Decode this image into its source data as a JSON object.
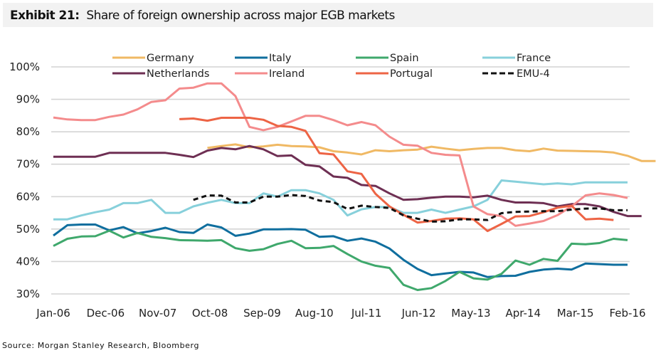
{
  "title": {
    "label": "Exhibit 21:",
    "text": "Share of foreign ownership across major EGB markets"
  },
  "source": "Source: Morgan Stanley Research, Bloomberg",
  "chart_data": {
    "type": "line",
    "title": "Share of foreign ownership across major EGB markets",
    "xlabel": "",
    "ylabel": "",
    "ylim": [
      30,
      100
    ],
    "yticks": [
      "30%",
      "40%",
      "50%",
      "60%",
      "70%",
      "80%",
      "90%",
      "100%"
    ],
    "ytick_values": [
      30,
      40,
      50,
      60,
      70,
      80,
      90,
      100
    ],
    "xtick_labels": [
      "Jan-06",
      "Dec-06",
      "Nov-07",
      "Oct-08",
      "Sep-09",
      "Aug-10",
      "Jul-11",
      "Jun-12",
      "May-13",
      "Apr-14",
      "Mar-15",
      "Feb-16"
    ],
    "xtick_index": [
      0,
      4,
      8,
      12,
      16,
      20,
      24,
      28,
      32,
      36,
      40,
      44
    ],
    "n_points": 45,
    "grid": true,
    "legend": "top",
    "series": [
      {
        "name": "Germany",
        "color": "#f0b964",
        "dash": false,
        "values": [
          null,
          null,
          null,
          null,
          null,
          null,
          null,
          null,
          null,
          null,
          null,
          75.0,
          75.6,
          76.1,
          75.2,
          75.5,
          76.0,
          75.6,
          75.5,
          75.2,
          74.0,
          73.6,
          73.0,
          74.3,
          74.0,
          74.3,
          74.5,
          75.4,
          74.8,
          74.3,
          74.7,
          75.0,
          75.0,
          74.3,
          74.0,
          74.8,
          74.2,
          74.1,
          74.0,
          73.9,
          73.6,
          72.6,
          71.0,
          71.0,
          null
        ]
      },
      {
        "name": "Italy",
        "color": "#0f6e9e",
        "dash": false,
        "values": [
          48.0,
          51.2,
          51.4,
          51.4,
          49.6,
          50.6,
          48.7,
          49.4,
          50.4,
          49.1,
          48.8,
          51.4,
          50.5,
          47.9,
          48.6,
          49.9,
          49.9,
          50.0,
          49.8,
          47.6,
          47.8,
          46.4,
          47.1,
          46.1,
          44.0,
          40.5,
          37.7,
          35.8,
          36.3,
          36.8,
          36.6,
          35.2,
          35.5,
          35.6,
          36.8,
          37.5,
          37.8,
          37.5,
          39.4,
          39.2,
          39.0,
          39.0,
          null,
          null,
          null
        ]
      },
      {
        "name": "Spain",
        "color": "#3fa86c",
        "dash": false,
        "values": [
          44.8,
          47.0,
          47.7,
          47.8,
          49.5,
          47.4,
          48.8,
          47.6,
          47.2,
          46.6,
          46.5,
          46.4,
          46.6,
          44.1,
          43.3,
          43.8,
          45.4,
          46.4,
          44.1,
          44.2,
          44.8,
          42.3,
          40.0,
          38.7,
          38.0,
          32.8,
          31.2,
          31.8,
          34.0,
          36.8,
          34.8,
          34.4,
          36.2,
          40.3,
          39.0,
          40.8,
          40.2,
          45.5,
          45.3,
          45.7,
          47.0,
          46.6,
          null,
          null,
          null
        ]
      },
      {
        "name": "France",
        "color": "#87d0db",
        "dash": false,
        "values": [
          53.0,
          53.0,
          54.2,
          55.2,
          56.0,
          58.0,
          58.0,
          59.0,
          55.0,
          55.0,
          57.0,
          58.1,
          59.0,
          58.0,
          58.0,
          61.0,
          60.0,
          62.0,
          62.0,
          61.0,
          59.0,
          54.2,
          56.1,
          56.8,
          56.8,
          55.0,
          55.0,
          56.0,
          55.0,
          56.0,
          57.0,
          59.0,
          65.0,
          64.6,
          64.2,
          63.8,
          64.1,
          63.8,
          64.4,
          64.4,
          64.4,
          64.4,
          null,
          null,
          null
        ]
      },
      {
        "name": "Netherlands",
        "color": "#6e2f53",
        "dash": false,
        "values": [
          72.3,
          72.3,
          72.3,
          72.3,
          73.5,
          73.5,
          73.5,
          73.5,
          73.5,
          72.9,
          72.2,
          74.2,
          75.0,
          74.6,
          75.6,
          74.6,
          72.5,
          72.7,
          69.8,
          69.3,
          66.2,
          65.8,
          63.6,
          63.3,
          61.0,
          59.0,
          59.2,
          59.7,
          60.0,
          60.0,
          59.8,
          60.3,
          59.0,
          58.2,
          58.2,
          58.0,
          57.0,
          57.7,
          57.7,
          57.0,
          55.3,
          54.0,
          54.0,
          null,
          null
        ]
      },
      {
        "name": "Ireland",
        "color": "#f48b8c",
        "dash": false,
        "values": [
          84.4,
          83.8,
          83.6,
          83.6,
          84.6,
          85.3,
          86.9,
          89.2,
          89.7,
          93.3,
          93.6,
          94.9,
          94.9,
          91.0,
          81.5,
          80.5,
          81.5,
          83.2,
          84.9,
          84.9,
          83.6,
          82.0,
          83.0,
          82.0,
          78.5,
          76.0,
          75.7,
          73.5,
          72.9,
          72.7,
          57.0,
          54.6,
          54.0,
          51.0,
          51.7,
          52.5,
          54.3,
          57.0,
          60.4,
          61.0,
          60.5,
          59.6,
          null,
          null,
          null
        ]
      },
      {
        "name": "Portugal",
        "color": "#ed6445",
        "dash": false,
        "values": [
          null,
          null,
          null,
          null,
          null,
          null,
          null,
          null,
          null,
          83.9,
          84.1,
          83.4,
          84.3,
          84.3,
          84.3,
          83.7,
          81.8,
          81.5,
          80.3,
          73.4,
          73.0,
          67.8,
          67.0,
          60.9,
          57.0,
          54.4,
          52.0,
          52.5,
          53.2,
          53.3,
          53.0,
          49.4,
          51.6,
          53.9,
          54.0,
          55.2,
          56.6,
          57.2,
          53.0,
          53.2,
          52.8,
          null,
          null,
          null,
          null
        ]
      },
      {
        "name": "EMU-4",
        "color": "#111111",
        "dash": true,
        "values": [
          null,
          null,
          null,
          null,
          null,
          null,
          null,
          null,
          null,
          null,
          59.0,
          60.4,
          60.3,
          58.2,
          58.2,
          60.0,
          60.0,
          60.5,
          60.2,
          58.8,
          58.3,
          56.2,
          57.2,
          56.8,
          56.5,
          54.2,
          53.2,
          52.3,
          52.4,
          53.0,
          53.0,
          52.8,
          54.9,
          55.3,
          55.4,
          55.5,
          55.5,
          56.0,
          56.3,
          56.4,
          55.8,
          55.8,
          null,
          null,
          null
        ]
      }
    ]
  }
}
